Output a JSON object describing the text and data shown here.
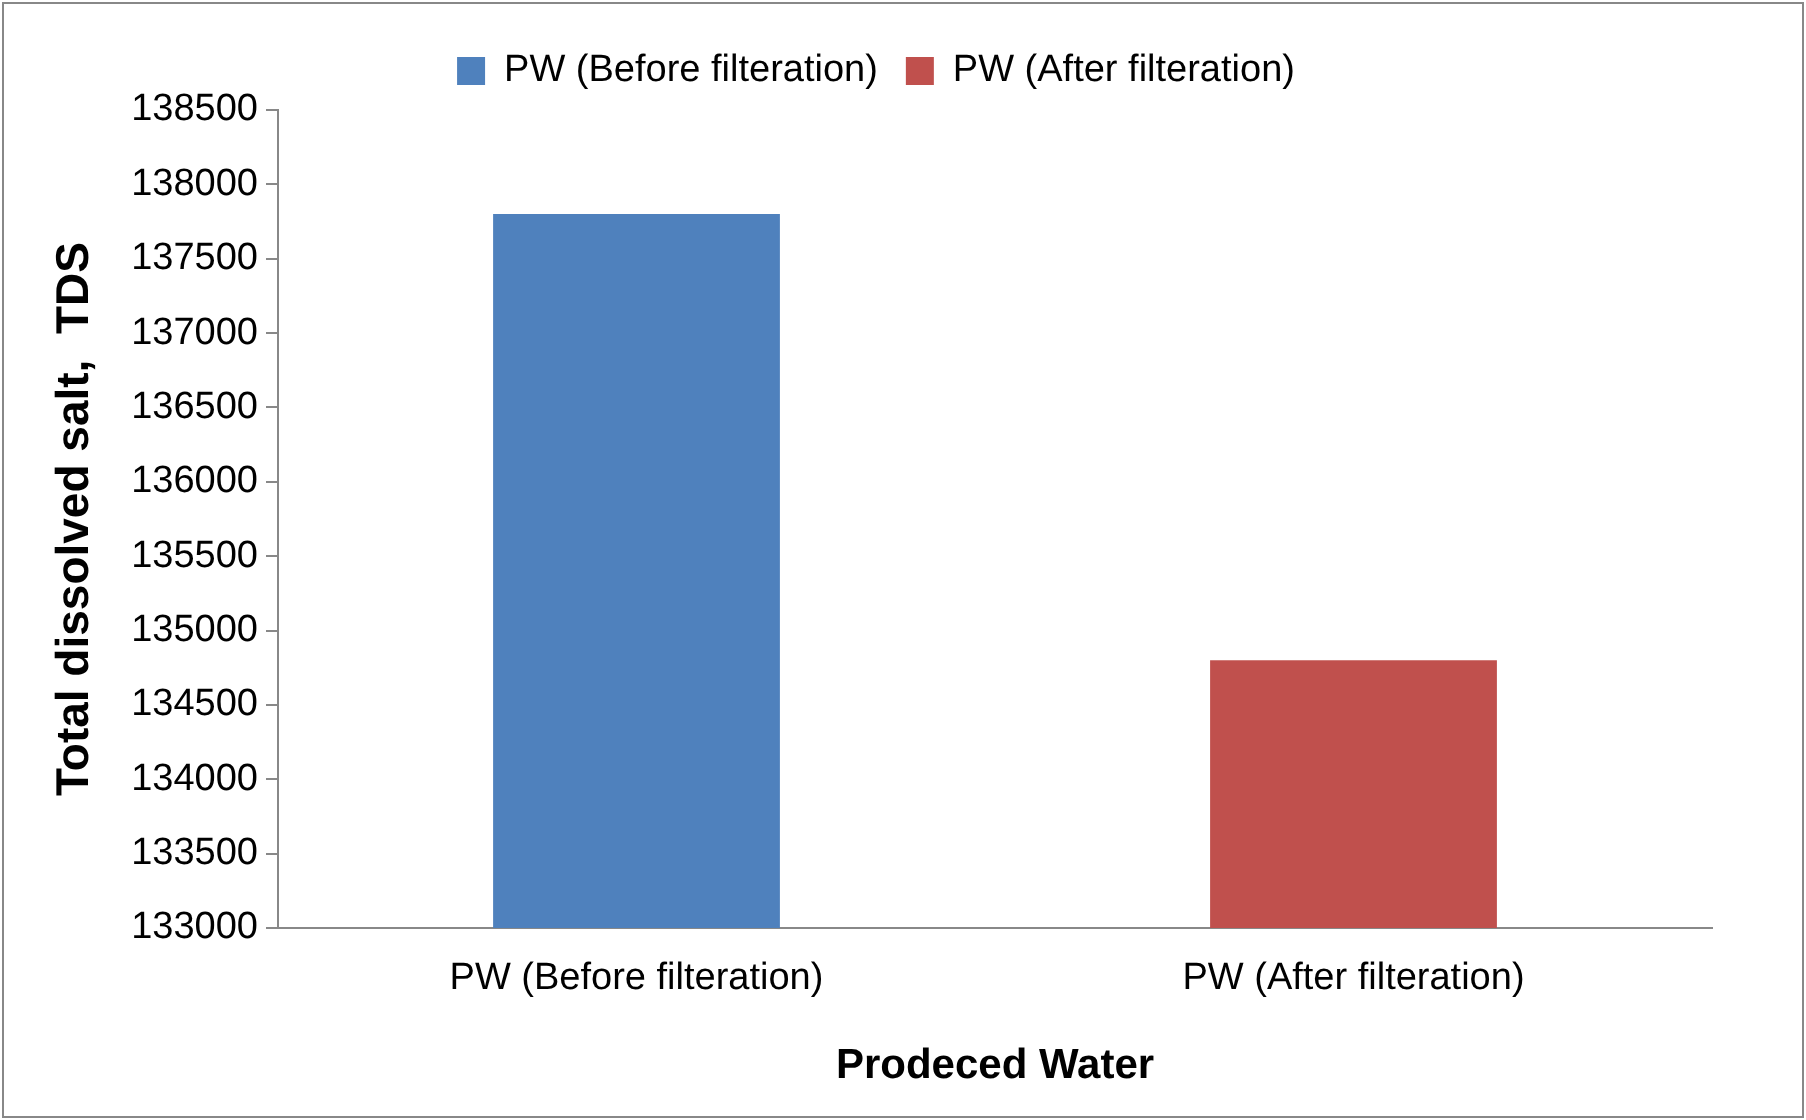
{
  "chart_data": {
    "type": "bar",
    "xlabel": "Prodeced Water",
    "ylabel": "Total dissolved salt,  TDS",
    "categories": [
      "PW (Before filteration)",
      "PW (After filteration)"
    ],
    "series": [
      {
        "name": "PW (Before filteration)",
        "color": "#4f81bd",
        "values": [
          137800,
          null
        ]
      },
      {
        "name": "PW (After filteration)",
        "color": "#c0504d",
        "values": [
          null,
          134800
        ]
      }
    ],
    "ylim": [
      133000,
      138500
    ],
    "yticks": [
      133000,
      133500,
      134000,
      134500,
      135000,
      135500,
      136000,
      136500,
      137000,
      137500,
      138000,
      138500
    ],
    "grid": false,
    "legend": "top"
  }
}
